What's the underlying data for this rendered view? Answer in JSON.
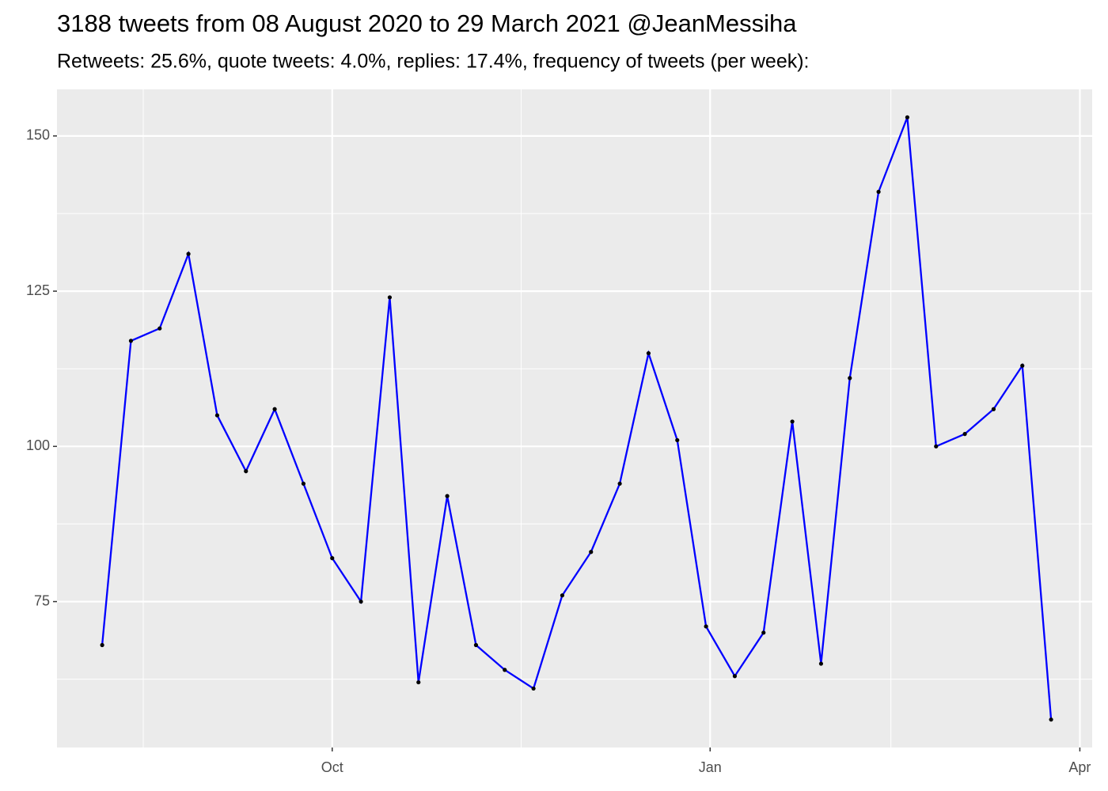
{
  "chart_data": {
    "type": "line",
    "title": "3188 tweets from 08 August 2020 to 29 March 2021 @JeanMessiha",
    "subtitle": "Retweets: 25.6%, quote tweets: 4.0%, replies: 17.4%, frequency of tweets (per week):",
    "x": [
      "2020-08-06",
      "2020-08-13",
      "2020-08-20",
      "2020-08-27",
      "2020-09-03",
      "2020-09-10",
      "2020-09-17",
      "2020-09-24",
      "2020-10-01",
      "2020-10-08",
      "2020-10-15",
      "2020-10-22",
      "2020-10-29",
      "2020-11-05",
      "2020-11-12",
      "2020-11-19",
      "2020-11-26",
      "2020-12-03",
      "2020-12-10",
      "2020-12-17",
      "2020-12-24",
      "2020-12-31",
      "2021-01-07",
      "2021-01-14",
      "2021-01-21",
      "2021-01-28",
      "2021-02-04",
      "2021-02-11",
      "2021-02-18",
      "2021-02-25",
      "2021-03-04",
      "2021-03-11",
      "2021-03-18",
      "2021-03-25"
    ],
    "series": [
      {
        "color": "#0000ff",
        "point_color": "#000000",
        "values": [
          68,
          117,
          119,
          131,
          105,
          96,
          106,
          94,
          82,
          75,
          124,
          62,
          92,
          68,
          64,
          61,
          76,
          83,
          94,
          115,
          101,
          71,
          63,
          70,
          104,
          65,
          111,
          141,
          153,
          100,
          102,
          106,
          113,
          56
        ]
      }
    ],
    "xlim": [
      "2020-07-26",
      "2021-04-04"
    ],
    "xticks": [
      {
        "value": "2020-10-01",
        "label": "Oct"
      },
      {
        "value": "2021-01-01",
        "label": "Jan"
      },
      {
        "value": "2021-04-01",
        "label": "Apr"
      }
    ],
    "x_minor_grid": [
      "2020-08-16",
      "2020-11-16",
      "2021-02-14"
    ],
    "ylim": [
      51.5,
      157.5
    ],
    "yticks": [
      75,
      100,
      125,
      150
    ],
    "y_minor_grid": [
      62.5,
      87.5,
      112.5,
      137.5
    ],
    "grid": true,
    "panel_color": "#ebebeb"
  }
}
